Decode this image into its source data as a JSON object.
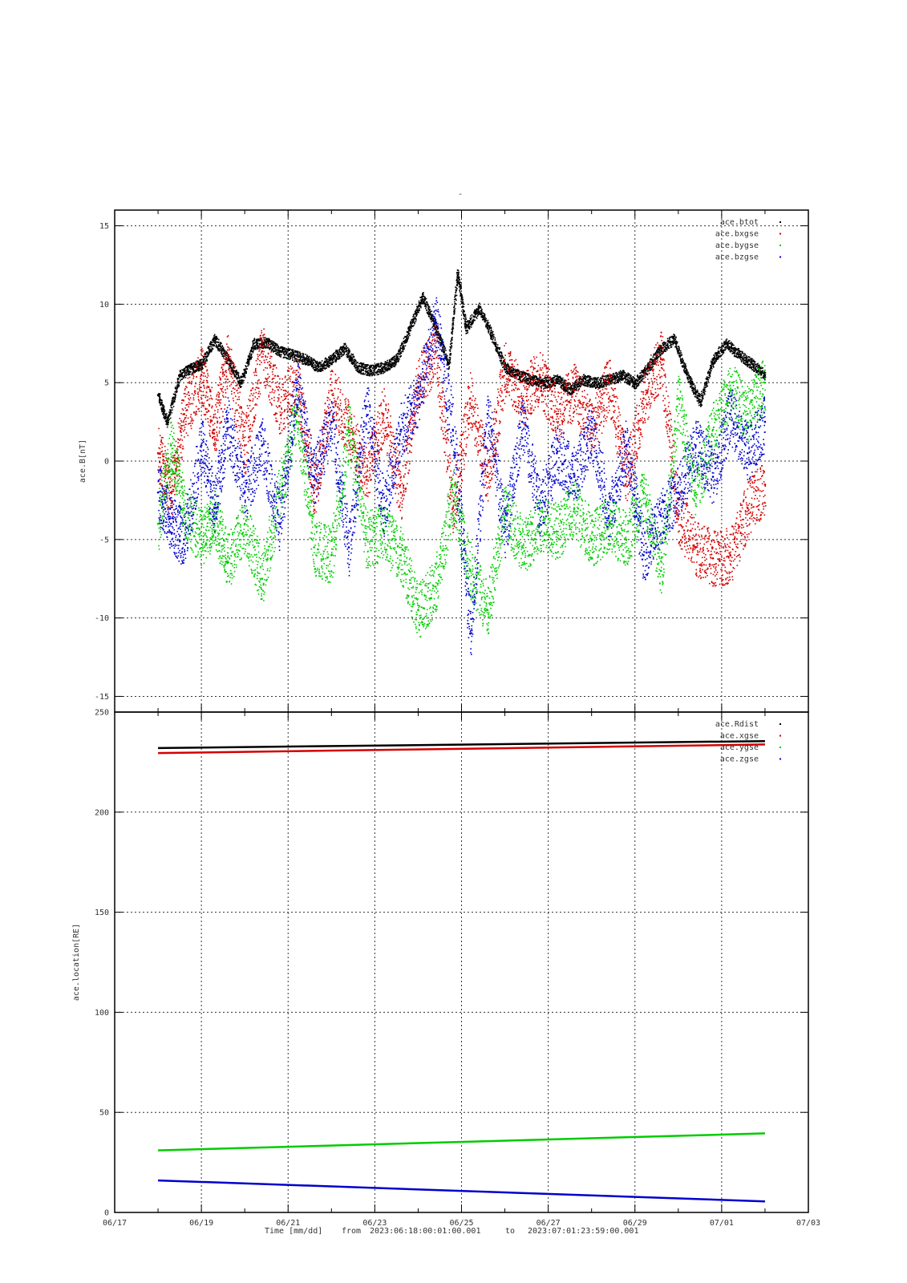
{
  "top_title": "-",
  "xlabel": {
    "prefix": "Time [mm/dd]",
    "from_label": "from",
    "from": "2023:06:18:00:01:00.001",
    "to_label": "to",
    "to": "2023:07:01:23:59:00.001"
  },
  "chart_data": [
    {
      "type": "scatter",
      "ylabel": "ace.B[nT]",
      "ylim": [
        -16,
        16
      ],
      "yticks": [
        -15,
        -10,
        -5,
        0,
        5,
        10,
        15
      ],
      "xlim": [
        "06/17",
        "07/03"
      ],
      "xticks": [
        "06/17",
        "06/19",
        "06/21",
        "06/23",
        "06/25",
        "06/27",
        "06/29",
        "07/01",
        "07/03"
      ],
      "grid": true,
      "legend_position": "top-right",
      "series": [
        {
          "name": "ace.btot",
          "color": "#000000",
          "x": [
            "06/18.0",
            "06/18.2",
            "06/18.5",
            "06/18.8",
            "06/19.0",
            "06/19.3",
            "06/19.6",
            "06/19.9",
            "06/20.2",
            "06/20.5",
            "06/20.8",
            "06/21.1",
            "06/21.4",
            "06/21.7",
            "06/22.0",
            "06/22.3",
            "06/22.6",
            "06/22.9",
            "06/23.2",
            "06/23.5",
            "06/23.8",
            "06/24.1",
            "06/24.4",
            "06/24.7",
            "06/24.9",
            "06/25.1",
            "06/25.4",
            "06/25.7",
            "06/26.0",
            "06/26.3",
            "06/26.6",
            "06/26.9",
            "06/27.2",
            "06/27.5",
            "06/27.8",
            "06/28.1",
            "06/28.4",
            "06/28.7",
            "06/29.0",
            "06/29.3",
            "06/29.6",
            "06/29.9",
            "06/30.2",
            "06/30.5",
            "06/30.8",
            "07/01.1",
            "07/01.4",
            "07/01.7",
            "07/02.0"
          ],
          "y": [
            4.2,
            2.5,
            5.5,
            6.0,
            6.2,
            7.8,
            6.5,
            5.0,
            7.5,
            7.6,
            7.0,
            6.8,
            6.5,
            6.0,
            6.5,
            7.2,
            6.0,
            5.8,
            6.0,
            6.5,
            8.5,
            10.5,
            8.5,
            6.2,
            12.0,
            8.5,
            9.8,
            8.0,
            6.0,
            5.5,
            5.2,
            5.0,
            5.2,
            4.6,
            5.2,
            5.0,
            5.2,
            5.5,
            5.0,
            6.0,
            7.2,
            7.8,
            5.5,
            3.8,
            6.5,
            7.5,
            6.8,
            6.2,
            5.5
          ]
        },
        {
          "name": "ace.bxgse",
          "color": "#d40000",
          "x": [
            "06/18.0",
            "06/18.3",
            "06/18.6",
            "06/19.0",
            "06/19.3",
            "06/19.6",
            "06/20.0",
            "06/20.4",
            "06/20.8",
            "06/21.2",
            "06/21.6",
            "06/22.0",
            "06/22.4",
            "06/22.8",
            "06/23.2",
            "06/23.6",
            "06/24.0",
            "06/24.4",
            "06/24.8",
            "06/25.2",
            "06/25.6",
            "06/26.0",
            "06/26.4",
            "06/26.8",
            "06/27.2",
            "06/27.6",
            "06/28.0",
            "06/28.4",
            "06/28.8",
            "06/29.2",
            "06/29.6",
            "06/30.0",
            "06/30.4",
            "06/30.8",
            "07/01.2",
            "07/01.6",
            "07/02.0"
          ],
          "y": [
            0.5,
            -2.0,
            3.0,
            5.5,
            2.0,
            6.5,
            1.0,
            7.0,
            3.5,
            5.0,
            -2.0,
            4.5,
            2.0,
            -1.0,
            3.0,
            -2.0,
            5.0,
            7.0,
            -3.0,
            4.0,
            -1.0,
            6.0,
            4.0,
            5.5,
            3.0,
            4.5,
            2.0,
            5.0,
            -1.0,
            4.0,
            6.5,
            -3.5,
            -5.5,
            -6.2,
            -6.0,
            -3.0,
            -1.5
          ]
        },
        {
          "name": "ace.bygse",
          "color": "#00cc00",
          "x": [
            "06/18.0",
            "06/18.3",
            "06/18.6",
            "06/19.0",
            "06/19.3",
            "06/19.6",
            "06/20.0",
            "06/20.4",
            "06/20.8",
            "06/21.2",
            "06/21.6",
            "06/22.0",
            "06/22.4",
            "06/22.8",
            "06/23.2",
            "06/23.6",
            "06/24.0",
            "06/24.4",
            "06/24.8",
            "06/25.2",
            "06/25.6",
            "06/26.0",
            "06/26.4",
            "06/26.8",
            "06/27.2",
            "06/27.6",
            "06/28.0",
            "06/28.4",
            "06/28.8",
            "06/29.2",
            "06/29.6",
            "06/30.0",
            "06/30.4",
            "06/30.8",
            "07/01.2",
            "07/01.6",
            "07/02.0"
          ],
          "y": [
            -4.0,
            1.0,
            -3.0,
            -5.0,
            -3.5,
            -6.5,
            -4.0,
            -7.5,
            -2.0,
            3.0,
            -5.5,
            -6.0,
            2.0,
            -5.0,
            -4.5,
            -6.0,
            -9.5,
            -8.0,
            -2.0,
            -7.0,
            -9.5,
            -3.0,
            -5.5,
            -4.0,
            -4.5,
            -3.0,
            -5.0,
            -4.0,
            -5.0,
            -2.0,
            -7.0,
            4.0,
            -2.0,
            2.0,
            4.5,
            3.0,
            5.0
          ]
        },
        {
          "name": "ace.bzgse",
          "color": "#0000cc",
          "x": [
            "06/18.0",
            "06/18.3",
            "06/18.6",
            "06/19.0",
            "06/19.3",
            "06/19.6",
            "06/20.0",
            "06/20.4",
            "06/20.8",
            "06/21.2",
            "06/21.6",
            "06/22.0",
            "06/22.4",
            "06/22.8",
            "06/23.2",
            "06/23.6",
            "06/24.0",
            "06/24.4",
            "06/24.8",
            "06/25.2",
            "06/25.6",
            "06/26.0",
            "06/26.4",
            "06/26.8",
            "06/27.2",
            "06/27.6",
            "06/28.0",
            "06/28.4",
            "06/28.8",
            "06/29.2",
            "06/29.6",
            "06/30.0",
            "06/30.4",
            "06/30.8",
            "07/01.2",
            "07/01.6",
            "07/02.0"
          ],
          "y": [
            -2.0,
            -4.0,
            -5.0,
            1.0,
            -3.0,
            2.5,
            -2.0,
            1.0,
            -4.0,
            5.0,
            -1.0,
            2.5,
            -5.5,
            3.5,
            -3.0,
            2.0,
            4.0,
            9.0,
            2.0,
            -11.0,
            3.0,
            -4.5,
            2.5,
            -3.0,
            0.5,
            -1.0,
            2.0,
            -3.5,
            1.0,
            -6.0,
            -3.5,
            -2.0,
            1.0,
            -1.0,
            3.0,
            0.5,
            2.5
          ]
        }
      ]
    },
    {
      "type": "scatter",
      "ylabel": "ace.location[RE]",
      "ylim": [
        0,
        250
      ],
      "yticks": [
        0,
        50,
        100,
        150,
        200,
        250
      ],
      "xlim": [
        "06/17",
        "07/03"
      ],
      "xticks": [
        "06/17",
        "06/19",
        "06/21",
        "06/23",
        "06/25",
        "06/27",
        "06/29",
        "07/01",
        "07/03"
      ],
      "grid": true,
      "legend_position": "top-right",
      "series": [
        {
          "name": "ace.Rdist",
          "color": "#000000",
          "x": [
            "06/18.0",
            "07/02.0"
          ],
          "y": [
            232.0,
            235.5
          ]
        },
        {
          "name": "ace.xgse",
          "color": "#d40000",
          "x": [
            "06/18.0",
            "07/02.0"
          ],
          "y": [
            229.5,
            233.8
          ]
        },
        {
          "name": "ace.ygse",
          "color": "#00cc00",
          "x": [
            "06/18.0",
            "07/02.0"
          ],
          "y": [
            31.0,
            39.5
          ]
        },
        {
          "name": "ace.zgse",
          "color": "#0000cc",
          "x": [
            "06/18.0",
            "07/02.0"
          ],
          "y": [
            16.0,
            5.5
          ]
        }
      ]
    }
  ]
}
